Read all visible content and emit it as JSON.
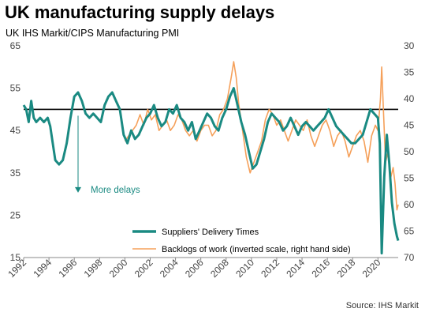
{
  "chart_data": {
    "type": "line",
    "title": "UK manufacturing supply delays",
    "subtitle": "UK IHS Markit/CIPS Manufacturing PMI",
    "source": "Source: IHS Markit",
    "annotation": "More delays",
    "annotation_x": 1996.3,
    "annotation_y_from": 48.5,
    "annotation_y_to": 30.5,
    "reference_line": 50,
    "x_ticks": [
      "1992",
      "1994",
      "1996",
      "1998",
      "2000",
      "2002",
      "2004",
      "2006",
      "2008",
      "2010",
      "2012",
      "2014",
      "2016",
      "2018",
      "2020"
    ],
    "xlim": [
      1992,
      2021.6
    ],
    "y_left": {
      "ticks": [
        "65",
        "55",
        "45",
        "35",
        "25",
        "15"
      ],
      "lim": [
        15,
        65
      ]
    },
    "y_right": {
      "ticks": [
        "30",
        "35",
        "40",
        "45",
        "50",
        "55",
        "60",
        "65",
        "70"
      ],
      "lim": [
        30,
        70
      ],
      "inverted": true
    },
    "colors": {
      "suppliers": "#1a8a82",
      "backlogs": "#f5a05a"
    },
    "series": [
      {
        "name": "Suppliers' Delivery Times",
        "axis": "left",
        "points": [
          [
            1992.0,
            51
          ],
          [
            1992.2,
            50
          ],
          [
            1992.4,
            47
          ],
          [
            1992.6,
            52
          ],
          [
            1992.8,
            48
          ],
          [
            1993.0,
            47
          ],
          [
            1993.3,
            48
          ],
          [
            1993.6,
            47
          ],
          [
            1993.9,
            48
          ],
          [
            1994.1,
            46
          ],
          [
            1994.3,
            42
          ],
          [
            1994.5,
            38
          ],
          [
            1994.8,
            37
          ],
          [
            1995.1,
            38
          ],
          [
            1995.4,
            42
          ],
          [
            1995.7,
            48
          ],
          [
            1996.0,
            53
          ],
          [
            1996.3,
            54
          ],
          [
            1996.6,
            52
          ],
          [
            1996.9,
            49
          ],
          [
            1997.2,
            48
          ],
          [
            1997.5,
            49
          ],
          [
            1997.8,
            48
          ],
          [
            1998.1,
            47
          ],
          [
            1998.4,
            51
          ],
          [
            1998.7,
            53
          ],
          [
            1999.0,
            54
          ],
          [
            1999.3,
            52
          ],
          [
            1999.6,
            50
          ],
          [
            1999.9,
            44
          ],
          [
            2000.2,
            42
          ],
          [
            2000.5,
            45
          ],
          [
            2000.8,
            43
          ],
          [
            2001.1,
            44
          ],
          [
            2001.4,
            46
          ],
          [
            2001.7,
            48
          ],
          [
            2002.0,
            49
          ],
          [
            2002.3,
            51
          ],
          [
            2002.6,
            48
          ],
          [
            2002.9,
            46
          ],
          [
            2003.2,
            47
          ],
          [
            2003.5,
            50
          ],
          [
            2003.8,
            49
          ],
          [
            2004.1,
            51
          ],
          [
            2004.4,
            48
          ],
          [
            2004.7,
            47
          ],
          [
            2005.0,
            45
          ],
          [
            2005.3,
            47
          ],
          [
            2005.6,
            43
          ],
          [
            2005.9,
            45
          ],
          [
            2006.2,
            47
          ],
          [
            2006.5,
            49
          ],
          [
            2006.8,
            48
          ],
          [
            2007.1,
            46
          ],
          [
            2007.4,
            45
          ],
          [
            2007.7,
            48
          ],
          [
            2008.0,
            50
          ],
          [
            2008.3,
            53
          ],
          [
            2008.6,
            55
          ],
          [
            2008.9,
            51
          ],
          [
            2009.2,
            47
          ],
          [
            2009.5,
            44
          ],
          [
            2009.8,
            40
          ],
          [
            2010.1,
            36
          ],
          [
            2010.4,
            37
          ],
          [
            2010.7,
            40
          ],
          [
            2011.0,
            43
          ],
          [
            2011.3,
            47
          ],
          [
            2011.6,
            49
          ],
          [
            2011.9,
            48
          ],
          [
            2012.2,
            47
          ],
          [
            2012.5,
            45
          ],
          [
            2012.8,
            46
          ],
          [
            2013.1,
            48
          ],
          [
            2013.4,
            46
          ],
          [
            2013.7,
            44
          ],
          [
            2014.0,
            46
          ],
          [
            2014.3,
            47
          ],
          [
            2014.6,
            46
          ],
          [
            2014.9,
            45
          ],
          [
            2015.2,
            46
          ],
          [
            2015.5,
            47
          ],
          [
            2015.8,
            48
          ],
          [
            2016.1,
            50
          ],
          [
            2016.4,
            48
          ],
          [
            2016.7,
            46
          ],
          [
            2017.0,
            45
          ],
          [
            2017.3,
            44
          ],
          [
            2017.6,
            43
          ],
          [
            2017.9,
            42
          ],
          [
            2018.2,
            42
          ],
          [
            2018.5,
            43
          ],
          [
            2018.8,
            44
          ],
          [
            2019.1,
            47
          ],
          [
            2019.4,
            50
          ],
          [
            2019.7,
            49
          ],
          [
            2020.0,
            48
          ],
          [
            2020.15,
            42
          ],
          [
            2020.3,
            16
          ],
          [
            2020.5,
            34
          ],
          [
            2020.7,
            44
          ],
          [
            2020.9,
            37
          ],
          [
            2021.1,
            28
          ],
          [
            2021.3,
            23
          ],
          [
            2021.5,
            20
          ],
          [
            2021.6,
            19
          ]
        ]
      },
      {
        "name": "Backlogs of work (inverted scale, right hand side)",
        "axis": "right",
        "points": [
          [
            2000.0,
            48
          ],
          [
            2000.3,
            47
          ],
          [
            2000.6,
            46
          ],
          [
            2000.9,
            45
          ],
          [
            2001.2,
            43
          ],
          [
            2001.5,
            45
          ],
          [
            2001.8,
            42
          ],
          [
            2002.1,
            44
          ],
          [
            2002.4,
            43
          ],
          [
            2002.7,
            46
          ],
          [
            2003.0,
            45
          ],
          [
            2003.3,
            44
          ],
          [
            2003.6,
            46
          ],
          [
            2003.9,
            45
          ],
          [
            2004.2,
            43
          ],
          [
            2004.5,
            44
          ],
          [
            2004.8,
            46
          ],
          [
            2005.1,
            47
          ],
          [
            2005.4,
            46
          ],
          [
            2005.7,
            48
          ],
          [
            2006.0,
            46
          ],
          [
            2006.3,
            45
          ],
          [
            2006.6,
            45
          ],
          [
            2006.9,
            47
          ],
          [
            2007.2,
            46
          ],
          [
            2007.5,
            43
          ],
          [
            2007.8,
            42
          ],
          [
            2008.1,
            40
          ],
          [
            2008.4,
            36
          ],
          [
            2008.6,
            33
          ],
          [
            2008.8,
            36
          ],
          [
            2009.0,
            41
          ],
          [
            2009.3,
            46
          ],
          [
            2009.6,
            51
          ],
          [
            2009.9,
            54
          ],
          [
            2010.2,
            52
          ],
          [
            2010.5,
            50
          ],
          [
            2010.8,
            48
          ],
          [
            2011.1,
            44
          ],
          [
            2011.4,
            42
          ],
          [
            2011.7,
            43
          ],
          [
            2012.0,
            45
          ],
          [
            2012.3,
            44
          ],
          [
            2012.6,
            46
          ],
          [
            2012.9,
            48
          ],
          [
            2013.2,
            46
          ],
          [
            2013.5,
            44
          ],
          [
            2013.8,
            45
          ],
          [
            2014.1,
            46
          ],
          [
            2014.4,
            44
          ],
          [
            2014.7,
            47
          ],
          [
            2015.0,
            49
          ],
          [
            2015.3,
            47
          ],
          [
            2015.6,
            45
          ],
          [
            2015.9,
            44
          ],
          [
            2016.2,
            46
          ],
          [
            2016.5,
            49
          ],
          [
            2016.8,
            47
          ],
          [
            2017.1,
            46
          ],
          [
            2017.4,
            48
          ],
          [
            2017.7,
            51
          ],
          [
            2018.0,
            49
          ],
          [
            2018.3,
            47
          ],
          [
            2018.6,
            46
          ],
          [
            2018.9,
            48
          ],
          [
            2019.2,
            52
          ],
          [
            2019.5,
            47
          ],
          [
            2019.8,
            45
          ],
          [
            2020.0,
            46
          ],
          [
            2020.2,
            40
          ],
          [
            2020.3,
            34
          ],
          [
            2020.45,
            43
          ],
          [
            2020.6,
            52
          ],
          [
            2020.8,
            50
          ],
          [
            2021.0,
            55
          ],
          [
            2021.2,
            53
          ],
          [
            2021.35,
            56
          ],
          [
            2021.5,
            61
          ],
          [
            2021.6,
            60
          ]
        ]
      }
    ]
  }
}
